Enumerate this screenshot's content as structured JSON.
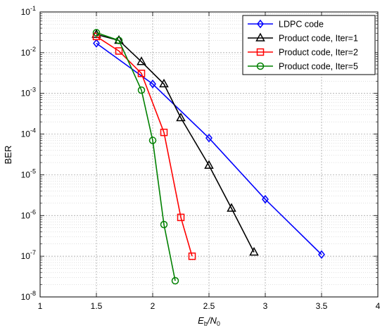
{
  "chart_data": {
    "type": "line",
    "xscale": "linear",
    "yscale": "log",
    "xlim": [
      1,
      4
    ],
    "ylim": [
      1e-08,
      0.1
    ],
    "xticks": [
      1,
      1.5,
      2,
      2.5,
      3,
      3.5,
      4
    ],
    "xtick_labels": [
      "1",
      "1.5",
      "2",
      "2.5",
      "3",
      "3.5",
      "4"
    ],
    "ytick_exponents": [
      -8,
      -7,
      -6,
      -5,
      -4,
      -3,
      -2,
      -1
    ],
    "ytick_base": "10",
    "xlabel": {
      "main": "E",
      "sub1": "b",
      "slash": "/N",
      "sub2": "0"
    },
    "ylabel": "BER",
    "grid": true,
    "legend_position": "top-right",
    "series": [
      {
        "name": "LDPC code",
        "color": "#0000ff",
        "marker": "diamond",
        "x": [
          1.5,
          2.0,
          2.5,
          3.0,
          3.5
        ],
        "y": [
          0.017,
          0.0017,
          8e-05,
          2.5e-06,
          1.1e-07
        ]
      },
      {
        "name": "Product code, Iter=1",
        "color": "#000000",
        "marker": "triangle",
        "x": [
          1.5,
          1.7,
          1.9,
          2.1,
          2.25,
          2.5,
          2.7,
          2.9
        ],
        "y": [
          0.028,
          0.02,
          0.006,
          0.0017,
          0.00025,
          1.7e-05,
          1.5e-06,
          1.25e-07
        ]
      },
      {
        "name": "Product code, Iter=2",
        "color": "#ff0000",
        "marker": "square",
        "x": [
          1.5,
          1.7,
          1.9,
          2.1,
          2.25,
          2.35
        ],
        "y": [
          0.025,
          0.011,
          0.0031,
          0.00011,
          9e-07,
          1e-07
        ]
      },
      {
        "name": "Product code, Iter=5",
        "color": "#008000",
        "marker": "circle",
        "x": [
          1.5,
          1.7,
          1.9,
          2.0,
          2.1,
          2.2
        ],
        "y": [
          0.031,
          0.02,
          0.0012,
          7e-05,
          6e-07,
          2.5e-08
        ]
      }
    ]
  }
}
